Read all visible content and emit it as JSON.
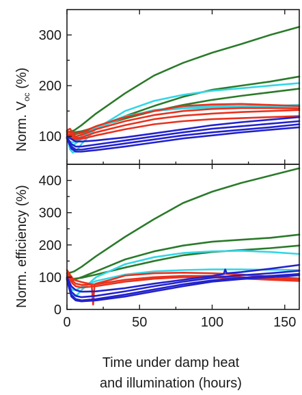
{
  "chart_data": [
    {
      "type": "line",
      "panel": "top",
      "ylabel": "Norm. V",
      "ylabel_sub": "oc",
      "ylabel_unit": " (%)",
      "xlim": [
        0,
        160
      ],
      "ylim": [
        45,
        350
      ],
      "yticks": [
        100,
        200,
        300
      ],
      "xticks": [
        0,
        50,
        100,
        150
      ],
      "show_x_tick_labels": false,
      "grid": false,
      "series": [
        {
          "color": "#2a7a2a",
          "x": [
            0,
            3,
            5,
            10,
            20,
            40,
            60,
            80,
            100,
            120,
            140,
            160
          ],
          "y": [
            108,
            110,
            112,
            122,
            145,
            185,
            220,
            245,
            265,
            282,
            300,
            316
          ]
        },
        {
          "color": "#2a7a2a",
          "x": [
            0,
            3,
            5,
            10,
            20,
            40,
            60,
            80,
            100,
            120,
            140,
            160
          ],
          "y": [
            103,
            104,
            104,
            107,
            118,
            140,
            160,
            178,
            192,
            200,
            208,
            218
          ]
        },
        {
          "color": "#2a7a2a",
          "x": [
            0,
            3,
            5,
            10,
            20,
            40,
            60,
            80,
            100,
            120,
            140,
            160
          ],
          "y": [
            110,
            108,
            108,
            110,
            118,
            135,
            150,
            162,
            172,
            180,
            187,
            194
          ]
        },
        {
          "color": "#33d6e6",
          "x": [
            0,
            2,
            4,
            7,
            10,
            20,
            40,
            60,
            80,
            100,
            120,
            140,
            160
          ],
          "y": [
            100,
            75,
            68,
            73,
            85,
            115,
            150,
            170,
            182,
            190,
            195,
            200,
            205
          ]
        },
        {
          "color": "#33d6e6",
          "x": [
            0,
            2,
            4,
            7,
            10,
            20,
            40,
            60,
            80,
            100,
            120,
            140,
            160
          ],
          "y": [
            98,
            85,
            82,
            88,
            96,
            115,
            138,
            152,
            158,
            160,
            160,
            160,
            162
          ]
        },
        {
          "color": "#33d6e6",
          "x": [
            0,
            2,
            4,
            7,
            10,
            20,
            40,
            60,
            80,
            100,
            120,
            140,
            160
          ],
          "y": [
            96,
            90,
            88,
            92,
            100,
            118,
            140,
            150,
            155,
            157,
            157,
            157,
            158
          ]
        },
        {
          "color": "#e8321e",
          "x": [
            0,
            2,
            4,
            6,
            10,
            20,
            40,
            60,
            80,
            100,
            120,
            140,
            160
          ],
          "y": [
            112,
            115,
            108,
            105,
            108,
            120,
            138,
            150,
            160,
            163,
            164,
            162,
            160
          ]
        },
        {
          "color": "#e8321e",
          "x": [
            0,
            2,
            4,
            6,
            10,
            20,
            40,
            60,
            80,
            100,
            120,
            140,
            160
          ],
          "y": [
            110,
            108,
            104,
            100,
            103,
            114,
            130,
            142,
            150,
            154,
            156,
            156,
            155
          ]
        },
        {
          "color": "#e8321e",
          "x": [
            0,
            2,
            4,
            6,
            10,
            20,
            40,
            60,
            80,
            100,
            120,
            140,
            160
          ],
          "y": [
            106,
            104,
            100,
            97,
            98,
            108,
            122,
            134,
            141,
            145,
            148,
            150,
            152
          ]
        },
        {
          "color": "#e8321e",
          "x": [
            0,
            2,
            4,
            6,
            10,
            20,
            40,
            60,
            80,
            100,
            120,
            140,
            160
          ],
          "y": [
            104,
            100,
            96,
            94,
            95,
            102,
            114,
            124,
            130,
            134,
            136,
            138,
            140
          ]
        },
        {
          "color": "#2222cc",
          "x": [
            0,
            3,
            6,
            10,
            20,
            40,
            60,
            80,
            100,
            120,
            140,
            160
          ],
          "y": [
            100,
            95,
            90,
            90,
            92,
            98,
            106,
            114,
            122,
            128,
            133,
            138
          ]
        },
        {
          "color": "#2222cc",
          "x": [
            0,
            3,
            6,
            10,
            20,
            40,
            60,
            80,
            100,
            120,
            140,
            160
          ],
          "y": [
            98,
            85,
            80,
            80,
            84,
            92,
            100,
            108,
            115,
            120,
            125,
            130
          ]
        },
        {
          "color": "#2222cc",
          "x": [
            0,
            3,
            6,
            10,
            20,
            40,
            60,
            80,
            100,
            120,
            140,
            160
          ],
          "y": [
            97,
            80,
            74,
            74,
            78,
            86,
            94,
            102,
            108,
            113,
            118,
            124
          ]
        },
        {
          "color": "#2222cc",
          "x": [
            0,
            3,
            6,
            10,
            20,
            40,
            60,
            80,
            100,
            120,
            140,
            160
          ],
          "y": [
            96,
            76,
            70,
            70,
            73,
            80,
            88,
            96,
            102,
            108,
            113,
            118
          ]
        }
      ]
    },
    {
      "type": "line",
      "panel": "bottom",
      "ylabel": "Norm. efficiency (%)",
      "xlabel_line1": "Time under damp heat",
      "xlabel_line2": "and illumination (hours)",
      "xlim": [
        0,
        160
      ],
      "ylim": [
        0,
        450
      ],
      "yticks": [
        0,
        100,
        200,
        300,
        400
      ],
      "xticks": [
        0,
        50,
        100,
        150
      ],
      "show_x_tick_labels": true,
      "grid": false,
      "series": [
        {
          "color": "#2a7a2a",
          "x": [
            0,
            3,
            5,
            10,
            20,
            40,
            60,
            80,
            100,
            120,
            140,
            160
          ],
          "y": [
            112,
            115,
            118,
            132,
            165,
            225,
            280,
            330,
            365,
            392,
            415,
            438
          ]
        },
        {
          "color": "#2a7a2a",
          "x": [
            0,
            3,
            5,
            10,
            20,
            40,
            60,
            80,
            100,
            120,
            140,
            160
          ],
          "y": [
            98,
            92,
            92,
            100,
            118,
            155,
            180,
            198,
            210,
            216,
            222,
            232
          ]
        },
        {
          "color": "#2a7a2a",
          "x": [
            0,
            3,
            5,
            10,
            20,
            40,
            60,
            80,
            100,
            120,
            140,
            160
          ],
          "y": [
            100,
            96,
            95,
            98,
            108,
            130,
            150,
            168,
            178,
            184,
            190,
            198
          ]
        },
        {
          "color": "#33d6e6",
          "x": [
            0,
            2,
            4,
            7,
            10,
            20,
            40,
            60,
            80,
            100,
            120,
            140,
            160
          ],
          "y": [
            100,
            60,
            42,
            45,
            60,
            100,
            140,
            162,
            175,
            180,
            182,
            178,
            172
          ]
        },
        {
          "color": "#33d6e6",
          "x": [
            0,
            2,
            4,
            7,
            10,
            20,
            40,
            60,
            80,
            100,
            120,
            140,
            160
          ],
          "y": [
            96,
            70,
            60,
            62,
            70,
            88,
            108,
            118,
            122,
            124,
            124,
            123,
            122
          ]
        },
        {
          "color": "#e8321e",
          "x": [
            0,
            2,
            4,
            6,
            10,
            17,
            18,
            19,
            20,
            30,
            40,
            60,
            80,
            100,
            120,
            140,
            160
          ],
          "y": [
            122,
            108,
            96,
            90,
            85,
            78,
            15,
            78,
            80,
            92,
            105,
            112,
            114,
            112,
            108,
            102,
            96
          ]
        },
        {
          "color": "#e8321e",
          "x": [
            0,
            2,
            4,
            6,
            10,
            20,
            40,
            60,
            80,
            100,
            120,
            140,
            160
          ],
          "y": [
            112,
            100,
            88,
            80,
            76,
            78,
            92,
            100,
            104,
            104,
            100,
            96,
            92
          ]
        },
        {
          "color": "#e8321e",
          "x": [
            0,
            2,
            4,
            6,
            10,
            20,
            40,
            60,
            80,
            100,
            120,
            140,
            160
          ],
          "y": [
            105,
            92,
            80,
            72,
            68,
            72,
            86,
            95,
            100,
            100,
            96,
            92,
            88
          ]
        },
        {
          "color": "#2222cc",
          "x": [
            0,
            3,
            6,
            10,
            20,
            40,
            60,
            80,
            100,
            108,
            109,
            110,
            120,
            140,
            160
          ],
          "y": [
            100,
            72,
            60,
            55,
            56,
            66,
            80,
            92,
            104,
            110,
            124,
            112,
            116,
            126,
            138
          ]
        },
        {
          "color": "#2222cc",
          "x": [
            0,
            3,
            6,
            10,
            20,
            40,
            60,
            80,
            100,
            120,
            140,
            160
          ],
          "y": [
            96,
            55,
            42,
            38,
            42,
            56,
            72,
            86,
            98,
            106,
            112,
            120
          ]
        },
        {
          "color": "#2222cc",
          "x": [
            0,
            3,
            6,
            10,
            20,
            40,
            60,
            80,
            100,
            120,
            140,
            160
          ],
          "y": [
            94,
            45,
            32,
            28,
            32,
            46,
            62,
            78,
            90,
            98,
            104,
            110
          ]
        },
        {
          "color": "#2222cc",
          "x": [
            0,
            3,
            6,
            10,
            20,
            40,
            60,
            80,
            100,
            120,
            140,
            160
          ],
          "y": [
            92,
            40,
            28,
            25,
            28,
            40,
            56,
            72,
            86,
            94,
            100,
            106
          ]
        }
      ]
    }
  ]
}
